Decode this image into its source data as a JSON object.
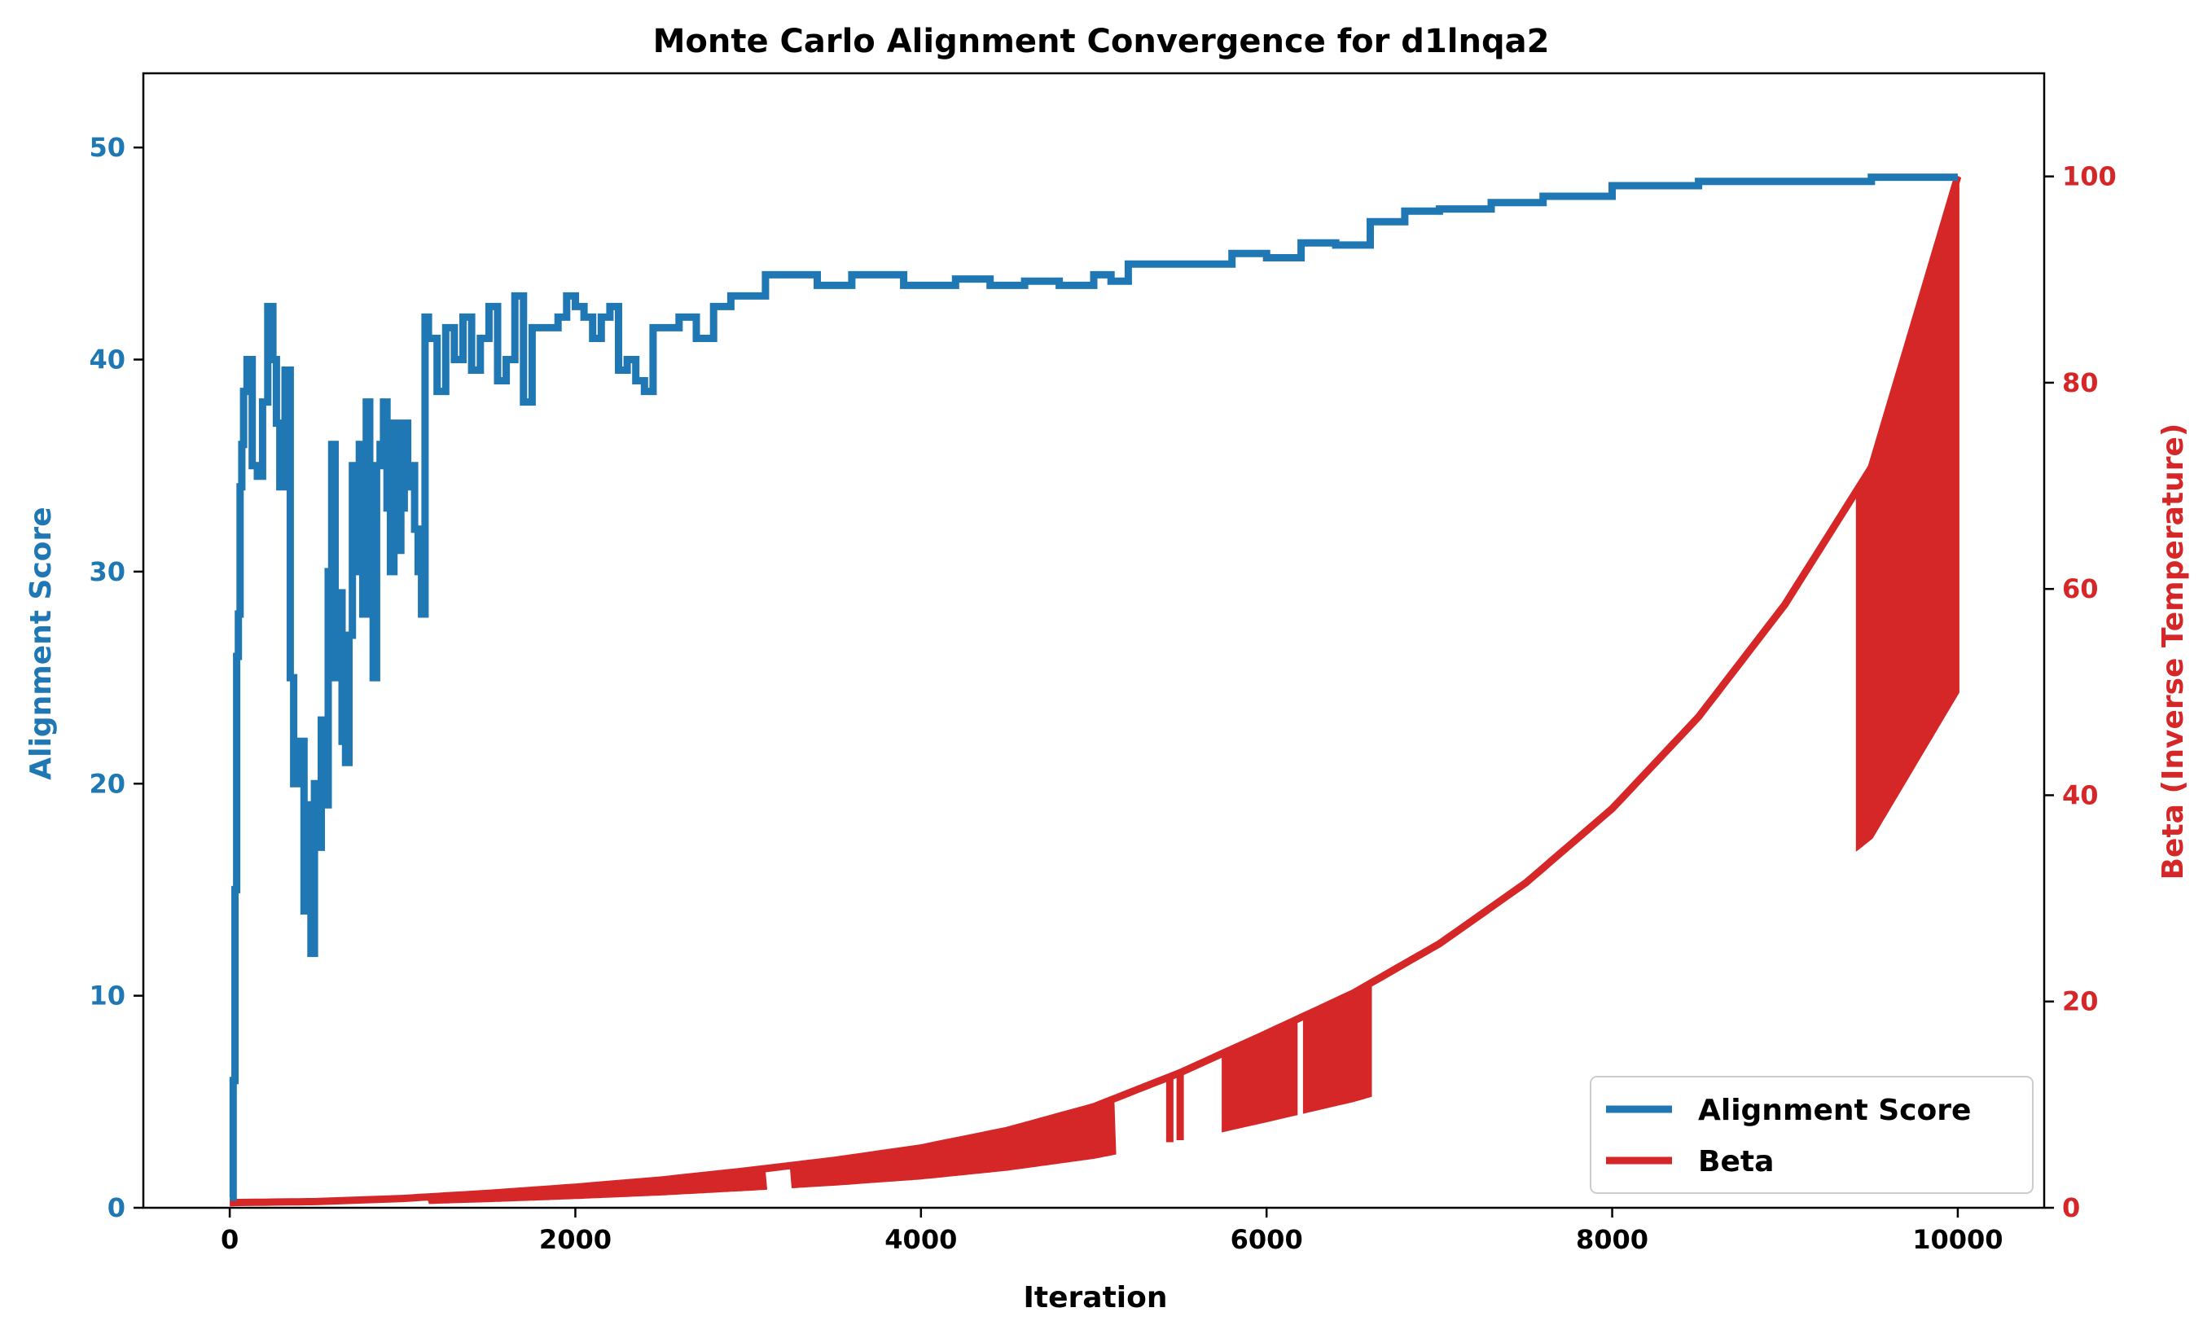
{
  "chart_data": {
    "type": "line",
    "title": "Monte Carlo Alignment Convergence for d1lnqa2",
    "xlabel": "Iteration",
    "ylabel_left": "Alignment Score",
    "ylabel_right": "Beta (Inverse Temperature)",
    "xlim": [
      -500,
      10500
    ],
    "ylim_left": [
      0,
      53.5
    ],
    "ylim_right": [
      0,
      110
    ],
    "x_ticks": [
      0,
      2000,
      4000,
      6000,
      8000,
      10000
    ],
    "y_left_ticks": [
      0,
      10,
      20,
      30,
      40,
      50
    ],
    "y_right_ticks": [
      0,
      20,
      40,
      60,
      80,
      100
    ],
    "grid": false,
    "legend_position": "lower-right",
    "colors": {
      "score": "#1f77b4",
      "beta": "#d62728",
      "axis": "#000000"
    },
    "series": [
      {
        "name": "Alignment Score",
        "axis": "left",
        "x": [
          0,
          20,
          30,
          40,
          50,
          60,
          70,
          80,
          100,
          130,
          160,
          190,
          220,
          250,
          270,
          290,
          320,
          350,
          370,
          400,
          430,
          450,
          470,
          490,
          510,
          530,
          550,
          570,
          590,
          610,
          630,
          650,
          670,
          690,
          710,
          730,
          750,
          770,
          790,
          810,
          830,
          850,
          870,
          890,
          910,
          930,
          950,
          970,
          990,
          1010,
          1030,
          1050,
          1070,
          1090,
          1110,
          1130,
          1150,
          1200,
          1250,
          1300,
          1350,
          1400,
          1450,
          1500,
          1550,
          1600,
          1650,
          1700,
          1750,
          1800,
          1850,
          1900,
          1950,
          2000,
          2050,
          2100,
          2150,
          2200,
          2250,
          2300,
          2350,
          2400,
          2450,
          2500,
          2600,
          2700,
          2800,
          2900,
          3000,
          3100,
          3200,
          3300,
          3400,
          3500,
          3600,
          3700,
          3800,
          3900,
          4000,
          4200,
          4400,
          4600,
          4800,
          5000,
          5100,
          5200,
          5500,
          5800,
          6000,
          6200,
          6400,
          6600,
          6800,
          7000,
          7300,
          7600,
          8000,
          8500,
          9000,
          9500,
          10000
        ],
        "values": [
          0.5,
          6,
          15,
          26,
          28,
          34,
          36,
          38.5,
          40,
          35,
          34.5,
          38,
          42.5,
          40,
          37,
          34,
          39.5,
          25,
          20,
          22,
          14,
          19,
          12,
          20,
          17,
          23,
          19,
          30,
          36,
          25,
          29,
          22,
          21,
          27,
          35,
          30,
          36,
          28,
          38,
          33,
          25,
          35,
          36,
          38,
          33,
          30,
          37,
          31,
          33,
          37,
          34,
          35,
          32,
          30,
          28,
          42,
          41,
          38.5,
          41.5,
          40,
          42,
          39.5,
          41,
          42.5,
          39,
          40,
          43,
          38,
          41.5,
          41.5,
          41.5,
          42,
          43,
          42.5,
          42,
          41,
          42,
          42.5,
          39.5,
          40,
          39,
          38.5,
          41.5,
          41.5,
          42,
          41,
          42.5,
          43,
          43,
          44,
          44,
          44,
          43.5,
          43.5,
          44,
          44,
          44,
          43.5,
          43.5,
          43.8,
          43.5,
          43.7,
          43.5,
          44,
          43.7,
          44.5,
          44.5,
          45,
          44.8,
          45.5,
          45.4,
          46.5,
          47,
          47.1,
          47.4,
          47.7,
          48.2,
          48.4,
          48.4,
          48.6,
          48.6
        ]
      },
      {
        "name": "Beta",
        "axis": "right",
        "x": [
          0,
          500,
          1000,
          1500,
          2000,
          2500,
          3000,
          3500,
          4000,
          4500,
          5000,
          5500,
          6000,
          6500,
          7000,
          7500,
          8000,
          8500,
          9000,
          9500,
          10000
        ],
        "values": [
          0.5,
          0.6,
          0.9,
          1.4,
          2.0,
          2.7,
          3.6,
          4.6,
          5.8,
          7.5,
          9.8,
          13.1,
          16.9,
          20.8,
          25.6,
          31.5,
          38.7,
          47.6,
          58.5,
          71.8,
          100.0
        ]
      }
    ]
  }
}
